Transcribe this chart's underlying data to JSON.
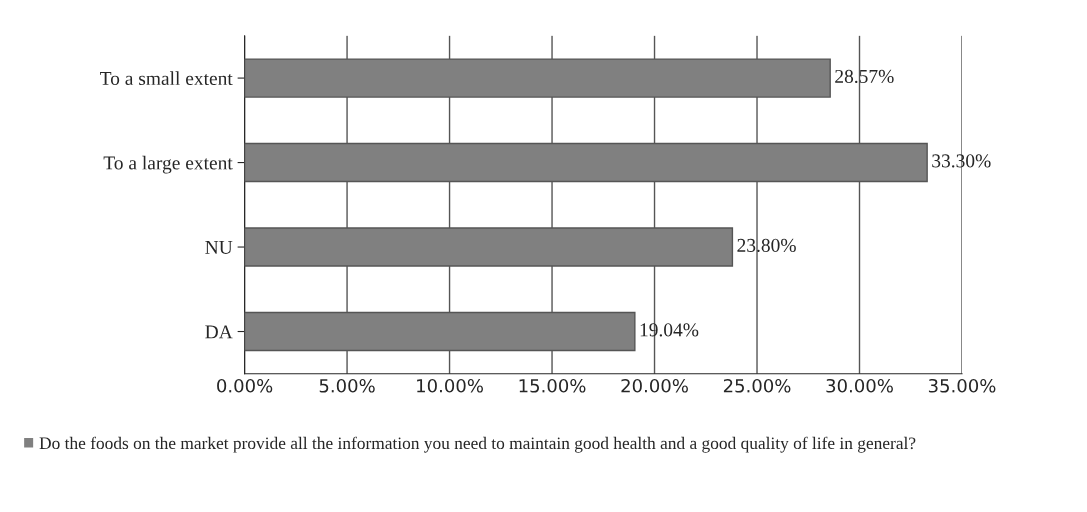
{
  "chart_data": {
    "type": "bar",
    "orientation": "horizontal",
    "categories": [
      "To a small extent",
      "To a large extent",
      "NU",
      "DA"
    ],
    "series": [
      {
        "name": "Do the foods on the market provide all the information you need to maintain good health and a good quality of life in general?",
        "color": "#808080",
        "values": [
          28.57,
          33.3,
          23.8,
          19.04
        ],
        "value_labels": [
          "28.57%",
          "33.30%",
          "23.80%",
          "19.04%"
        ]
      }
    ],
    "xlim": [
      0,
      35
    ],
    "xticks": [
      {
        "value": 0,
        "label": "0.00%"
      },
      {
        "value": 5,
        "label": "5.00%"
      },
      {
        "value": 10,
        "label": "10.00%"
      },
      {
        "value": 15,
        "label": "15.00%"
      },
      {
        "value": 20,
        "label": "20.00%"
      },
      {
        "value": 25,
        "label": "25.00%"
      },
      {
        "value": 30,
        "label": "30.00%"
      },
      {
        "value": 35,
        "label": "35.00%"
      }
    ],
    "grid": "x",
    "legend": "bottom"
  }
}
